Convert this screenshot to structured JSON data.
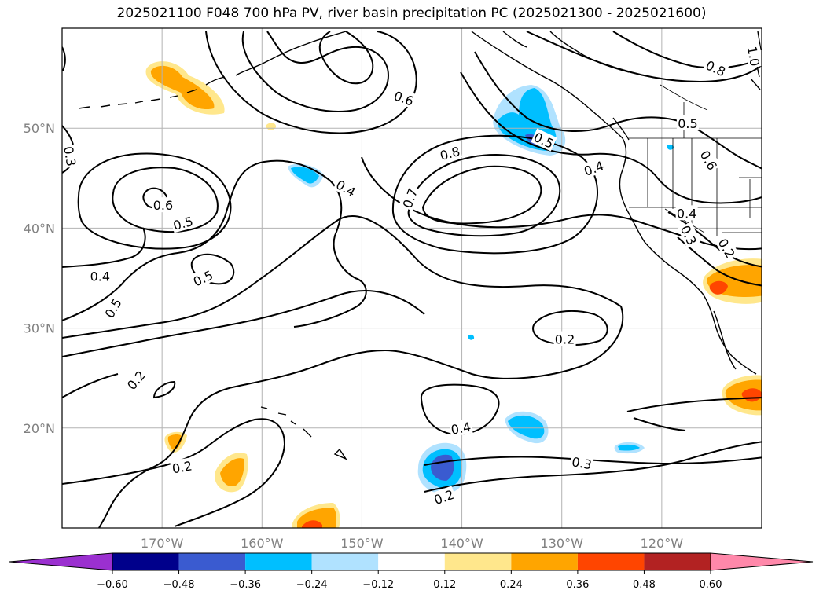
{
  "title": "2025021100 F048 700 hPa PV, river basin precipitation PC (2025021300 - 2025021600)",
  "map": {
    "extent": {
      "lon_min": -180,
      "lon_max": -110,
      "lat_min": 10,
      "lat_max": 60
    },
    "gridlines": true,
    "lon_ticks": [
      {
        "lon": -170,
        "label": "170°W"
      },
      {
        "lon": -160,
        "label": "160°W"
      },
      {
        "lon": -150,
        "label": "150°W"
      },
      {
        "lon": -140,
        "label": "140°W"
      },
      {
        "lon": -130,
        "label": "130°W"
      },
      {
        "lon": -120,
        "label": "120°W"
      }
    ],
    "lat_ticks": [
      {
        "lat": 20,
        "label": "20°N"
      },
      {
        "lat": 30,
        "label": "30°N"
      },
      {
        "lat": 40,
        "label": "40°N"
      },
      {
        "lat": 50,
        "label": "50°N"
      }
    ],
    "contour_labels": [
      {
        "text": "0.8",
        "lon": -141.2,
        "lat": 47.5,
        "rot": -15
      },
      {
        "text": "0.7",
        "lon": -145.2,
        "lat": 43.0,
        "rot": -70
      },
      {
        "text": "0.6",
        "lon": -145.8,
        "lat": 53.0,
        "rot": 20
      },
      {
        "text": "0.5",
        "lon": -131.8,
        "lat": 48.8,
        "rot": 25
      },
      {
        "text": "0.4",
        "lon": -126.8,
        "lat": 46.0,
        "rot": -20
      },
      {
        "text": "0.4",
        "lon": -151.6,
        "lat": 44.0,
        "rot": 30
      },
      {
        "text": "0.8",
        "lon": -114.6,
        "lat": 56.0,
        "rot": 25
      },
      {
        "text": "0.5",
        "lon": -117.4,
        "lat": 50.5,
        "rot": 0
      },
      {
        "text": "0.6",
        "lon": -115.3,
        "lat": 46.8,
        "rot": 60
      },
      {
        "text": "0.4",
        "lon": -117.5,
        "lat": 41.5,
        "rot": 0
      },
      {
        "text": "0.3",
        "lon": -117.3,
        "lat": 39.3,
        "rot": 65
      },
      {
        "text": "0.2",
        "lon": -113.5,
        "lat": 38.0,
        "rot": 60
      },
      {
        "text": "1.0",
        "lon": -110.8,
        "lat": 57.2,
        "rot": 80
      },
      {
        "text": "0.6",
        "lon": -169.9,
        "lat": 42.3,
        "rot": 0
      },
      {
        "text": "0.5",
        "lon": -167.9,
        "lat": 40.5,
        "rot": -15
      },
      {
        "text": "0.5",
        "lon": -165.9,
        "lat": 35.0,
        "rot": -25
      },
      {
        "text": "0.4",
        "lon": -176.2,
        "lat": 35.2,
        "rot": 0
      },
      {
        "text": "0.5",
        "lon": -174.9,
        "lat": 32.0,
        "rot": -60
      },
      {
        "text": "0.3",
        "lon": -179.2,
        "lat": 47.2,
        "rot": 80
      },
      {
        "text": "0.2",
        "lon": -172.6,
        "lat": 24.8,
        "rot": -50
      },
      {
        "text": "0.2",
        "lon": -168.0,
        "lat": 16.1,
        "rot": -10
      },
      {
        "text": "0.2",
        "lon": -129.7,
        "lat": 28.9,
        "rot": 0
      },
      {
        "text": "0.4",
        "lon": -140.1,
        "lat": 20.0,
        "rot": -10
      },
      {
        "text": "0.3",
        "lon": -128.0,
        "lat": 16.5,
        "rot": 10
      },
      {
        "text": "0.2",
        "lon": -141.8,
        "lat": 13.1,
        "rot": -20
      }
    ],
    "shading_color_names": [
      "purple",
      "navy",
      "royal-blue",
      "deep-sky-blue",
      "light-sky-blue",
      "white",
      "khaki",
      "orange",
      "orange-red",
      "firebrick",
      "pink"
    ]
  },
  "colorbar": {
    "colors": [
      "#9b30d0",
      "#00008b",
      "#3a5bd0",
      "#00bfff",
      "#b0e2ff",
      "#ffffff",
      "#ffe78c",
      "#ffa500",
      "#ff4500",
      "#b22222",
      "#ff88aa"
    ],
    "ticks": [
      "−0.60",
      "−0.48",
      "−0.36",
      "−0.24",
      "−0.12",
      "0.12",
      "0.24",
      "0.36",
      "0.48",
      "0.60"
    ]
  }
}
